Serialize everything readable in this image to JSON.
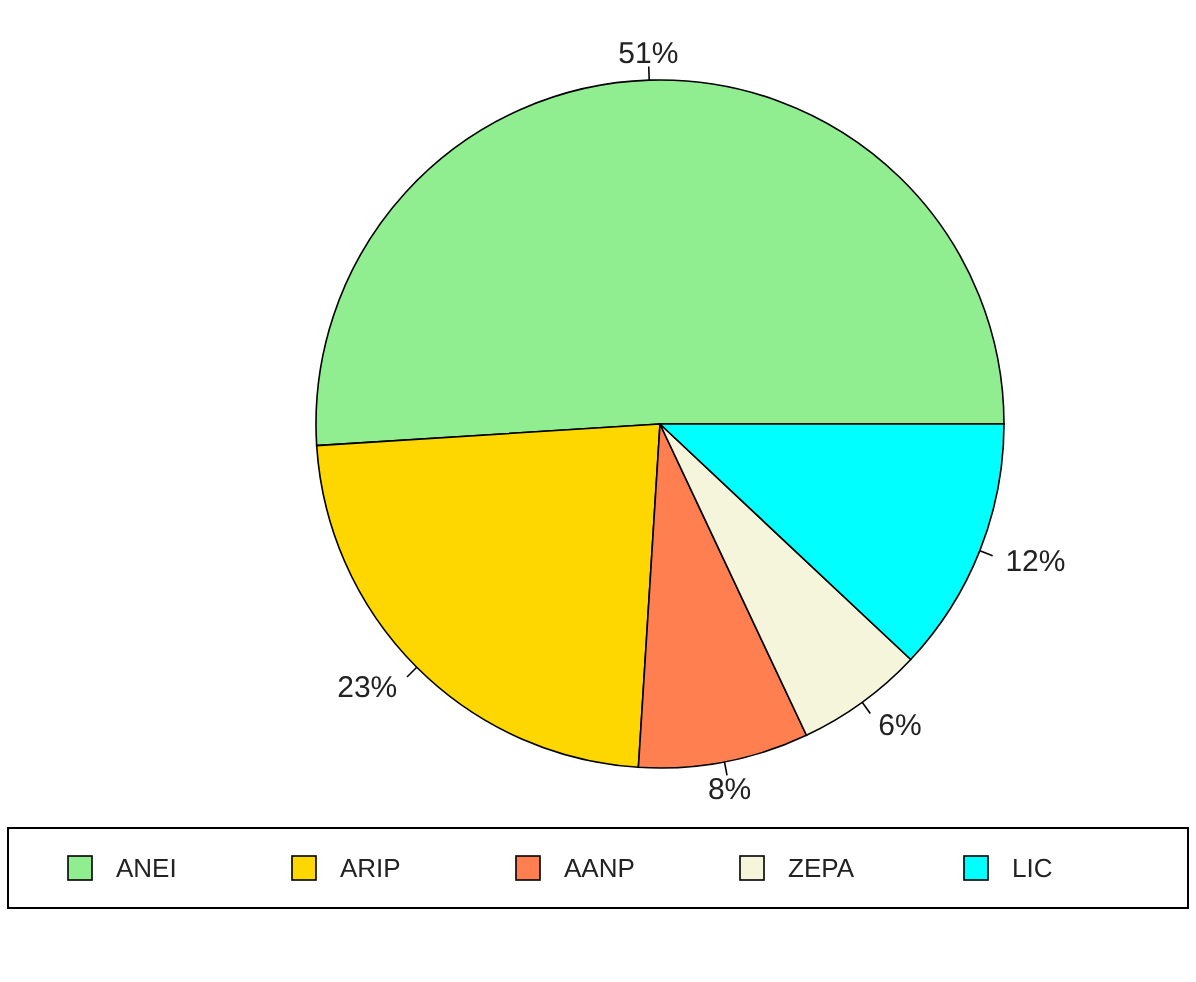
{
  "chart_data": {
    "type": "pie",
    "categories": [
      "ANEI",
      "ARIP",
      "AANP",
      "ZEPA",
      "LIC"
    ],
    "values": [
      51,
      23,
      8,
      6,
      12
    ],
    "colors": [
      "#90ee90",
      "#ffd700",
      "#ff7f50",
      "#f5f5dc",
      "#00ffff"
    ],
    "value_labels": [
      "51%",
      "23%",
      "8%",
      "6%",
      "12%"
    ],
    "legend": "bottom"
  }
}
